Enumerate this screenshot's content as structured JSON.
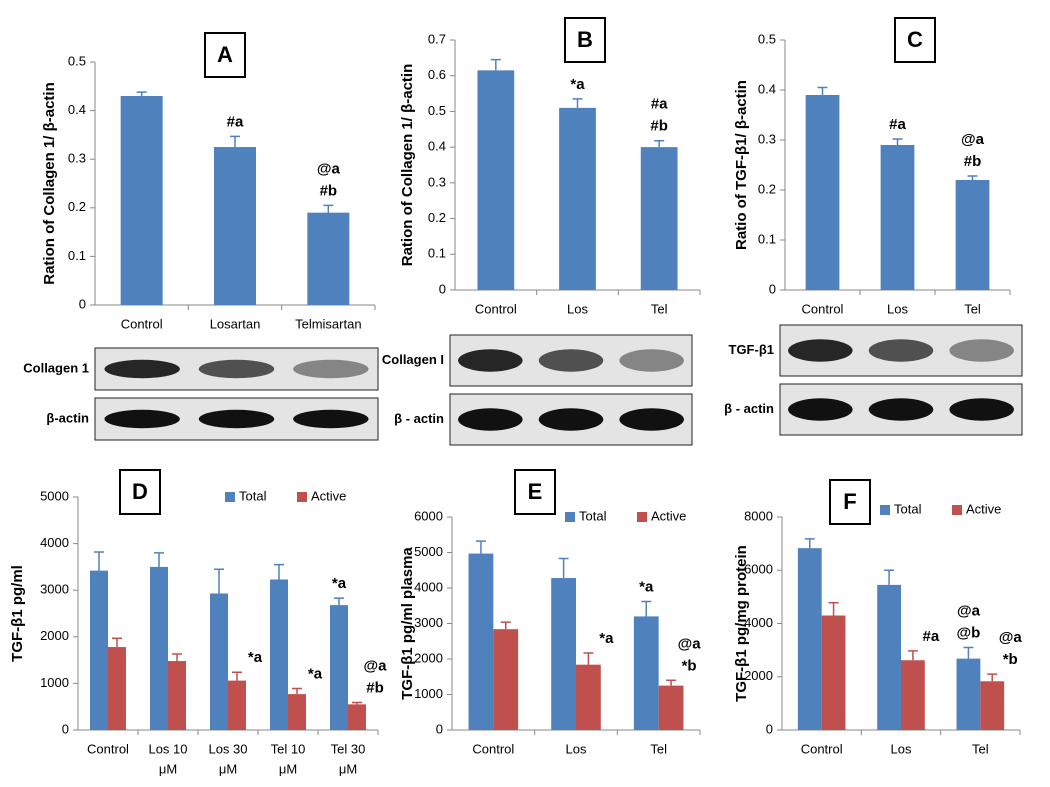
{
  "chart_data": [
    {
      "type": "bar",
      "panel_label": "A",
      "y_label": "Ration of Collagen 1/ β-actin",
      "categories": [
        "Control",
        "Losartan",
        "Telmisartan"
      ],
      "series": [
        {
          "name": null,
          "color": "#4f81bd",
          "values": [
            0.43,
            0.325,
            0.19
          ],
          "errors": [
            0.008,
            0.022,
            0.015
          ],
          "annotations": [
            null,
            [
              "#a"
            ],
            [
              "@a",
              "#b"
            ]
          ]
        }
      ],
      "ylim": [
        0,
        0.5
      ],
      "yticks": [
        0,
        0.1,
        0.2,
        0.3,
        0.4,
        0.5
      ],
      "blot_labels": [
        "Collagen 1",
        "β-actin"
      ]
    },
    {
      "type": "bar",
      "panel_label": "B",
      "y_label": "Ration of Collagen 1/ β-actin",
      "categories": [
        "Control",
        "Los",
        "Tel"
      ],
      "series": [
        {
          "name": null,
          "color": "#4f81bd",
          "values": [
            0.615,
            0.51,
            0.4
          ],
          "errors": [
            0.03,
            0.025,
            0.018
          ],
          "annotations": [
            null,
            [
              "*a"
            ],
            [
              "#a",
              "#b"
            ]
          ]
        }
      ],
      "ylim": [
        0,
        0.7
      ],
      "yticks": [
        0,
        0.1,
        0.2,
        0.3,
        0.4,
        0.5,
        0.6,
        0.7
      ],
      "blot_labels": [
        "Collagen I",
        "β - actin"
      ]
    },
    {
      "type": "bar",
      "panel_label": "C",
      "y_label": "Ratio of TGF-β1/ β-actin",
      "categories": [
        "Control",
        "Los",
        "Tel"
      ],
      "series": [
        {
          "name": null,
          "color": "#4f81bd",
          "values": [
            0.39,
            0.29,
            0.22
          ],
          "errors": [
            0.015,
            0.012,
            0.008
          ],
          "annotations": [
            null,
            [
              "#a"
            ],
            [
              "@a",
              "#b"
            ]
          ]
        }
      ],
      "ylim": [
        0,
        0.5
      ],
      "yticks": [
        0,
        0.1,
        0.2,
        0.3,
        0.4,
        0.5
      ],
      "blot_labels": [
        "TGF-β1",
        "β - actin"
      ]
    },
    {
      "type": "bar",
      "panel_label": "D",
      "y_label": "TGF-β1 pg/ml",
      "legend": "top",
      "categories": [
        [
          "Control"
        ],
        [
          "Los 10",
          "μM"
        ],
        [
          "Los  30",
          "μM"
        ],
        [
          "Tel 10",
          "μM"
        ],
        [
          "Tel 30",
          "μM"
        ]
      ],
      "series": [
        {
          "name": "Total",
          "color": "#4f81bd",
          "values": [
            3420,
            3500,
            2930,
            3230,
            2680
          ],
          "errors": [
            400,
            300,
            520,
            320,
            150
          ],
          "annotations": [
            null,
            null,
            null,
            null,
            [
              "*a"
            ]
          ]
        },
        {
          "name": "Active",
          "color": "#c0504d",
          "values": [
            1780,
            1480,
            1060,
            770,
            550
          ],
          "errors": [
            190,
            150,
            180,
            120,
            40
          ],
          "annotations": [
            null,
            null,
            [
              "*a"
            ],
            [
              "*a"
            ],
            [
              "@a",
              "#b"
            ]
          ]
        }
      ],
      "ylim": [
        0,
        5000
      ],
      "yticks": [
        0,
        1000,
        2000,
        3000,
        4000,
        5000
      ]
    },
    {
      "type": "bar",
      "panel_label": "E",
      "y_label": "TGF-β1 pg/ml plasma",
      "legend": "top",
      "categories": [
        [
          "Control"
        ],
        [
          "Los"
        ],
        [
          "Tel"
        ]
      ],
      "series": [
        {
          "name": "Total",
          "color": "#4f81bd",
          "values": [
            4970,
            4280,
            3200
          ],
          "errors": [
            350,
            550,
            420
          ],
          "annotations": [
            null,
            null,
            [
              "*a"
            ]
          ]
        },
        {
          "name": "Active",
          "color": "#c0504d",
          "values": [
            2840,
            1840,
            1250
          ],
          "errors": [
            200,
            330,
            150
          ],
          "annotations": [
            null,
            [
              "*a"
            ],
            [
              "@a",
              "*b"
            ]
          ]
        }
      ],
      "ylim": [
        0,
        6000
      ],
      "yticks": [
        0,
        1000,
        2000,
        3000,
        4000,
        5000,
        6000
      ]
    },
    {
      "type": "bar",
      "panel_label": "F",
      "y_label": "TGF-β1 pg/mg protein",
      "legend": "top",
      "categories": [
        [
          "Control"
        ],
        [
          "Los"
        ],
        [
          "Tel"
        ]
      ],
      "series": [
        {
          "name": "Total",
          "color": "#4f81bd",
          "values": [
            6830,
            5450,
            2680
          ],
          "errors": [
            350,
            550,
            420
          ],
          "annotations": [
            null,
            null,
            [
              "@a",
              "@b"
            ]
          ]
        },
        {
          "name": "Active",
          "color": "#c0504d",
          "values": [
            4300,
            2620,
            1830
          ],
          "errors": [
            480,
            350,
            270
          ],
          "annotations": [
            null,
            [
              "#a"
            ],
            [
              "@a",
              "*b"
            ]
          ]
        }
      ],
      "ylim": [
        0,
        8000
      ],
      "yticks": [
        0,
        2000,
        4000,
        6000,
        8000
      ]
    }
  ]
}
